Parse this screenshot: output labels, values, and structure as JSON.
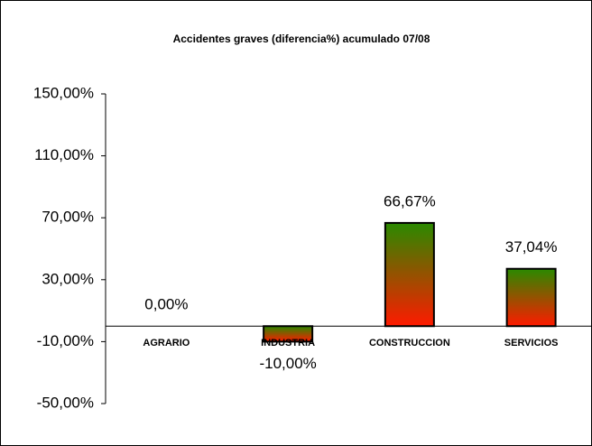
{
  "chart_data": {
    "type": "bar",
    "title": "Accidentes graves (diferencia%) acumulado 07/08",
    "categories": [
      "AGRARIO",
      "INDUSTRIA",
      "CONSTRUCCION",
      "SERVICIOS"
    ],
    "values": [
      0,
      -10,
      66.67,
      37.04
    ],
    "value_labels": [
      "0,00%",
      "-10,00%",
      "66,67%",
      "37,04%"
    ],
    "colors": [
      "#2a8a00",
      "#ff1a00"
    ],
    "ylim": [
      -50,
      150
    ],
    "yticks": [
      {
        "value": -50,
        "label": "-50,00%"
      },
      {
        "value": -10,
        "label": "-10,00%"
      },
      {
        "value": 30,
        "label": "30,00%"
      },
      {
        "value": 70,
        "label": "70,00%"
      },
      {
        "value": 110,
        "label": "110,00%"
      },
      {
        "value": 150,
        "label": "150,00%"
      }
    ]
  }
}
